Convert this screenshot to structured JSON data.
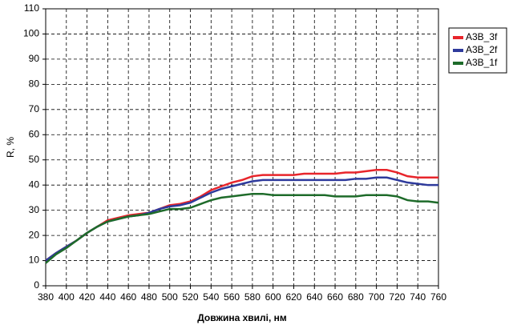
{
  "chart_data": {
    "type": "line",
    "xlabel": "Довжина хвилі, нм",
    "ylabel": "R, %",
    "x": [
      380,
      390,
      400,
      410,
      420,
      430,
      440,
      450,
      460,
      470,
      480,
      490,
      500,
      510,
      520,
      530,
      540,
      550,
      560,
      570,
      580,
      590,
      600,
      610,
      620,
      630,
      640,
      650,
      660,
      670,
      680,
      690,
      700,
      710,
      720,
      730,
      740,
      750,
      760
    ],
    "series": [
      {
        "name": "A3B_3f",
        "color": "#e8252b",
        "values": [
          10,
          13,
          15.5,
          18,
          21,
          23.5,
          26,
          27,
          28,
          28.5,
          29,
          30.5,
          32,
          32.5,
          33.5,
          35.5,
          38,
          39.5,
          41,
          42,
          43.5,
          44,
          44,
          44,
          44,
          44.5,
          44.5,
          44.5,
          44.5,
          45,
          45,
          45.5,
          46,
          46,
          45,
          43.5,
          43,
          43,
          43
        ]
      },
      {
        "name": "A3B_2f",
        "color": "#2e3a9c",
        "values": [
          10,
          13,
          15.5,
          18,
          21,
          23.5,
          25.5,
          26.5,
          27.5,
          28,
          29,
          30.5,
          31.5,
          32,
          33,
          35,
          37,
          38.5,
          39.5,
          40.5,
          41.5,
          42,
          42,
          42,
          42,
          42,
          42,
          42,
          42,
          42,
          42.5,
          42.5,
          43,
          43,
          42,
          41,
          40.5,
          40,
          40
        ]
      },
      {
        "name": "A3B_1f",
        "color": "#1e6b2a",
        "values": [
          9,
          12.5,
          15,
          18,
          21,
          23.5,
          25.5,
          26.5,
          27.5,
          28,
          28.5,
          29.5,
          30.5,
          30.5,
          31,
          32.5,
          34,
          35,
          35.5,
          36,
          36.5,
          36.5,
          36,
          36,
          36,
          36,
          36,
          36,
          35.5,
          35.5,
          35.5,
          36,
          36,
          36,
          35.5,
          34,
          33.5,
          33.5,
          33
        ]
      }
    ],
    "xlim": [
      380,
      760
    ],
    "xticks": [
      380,
      400,
      420,
      440,
      460,
      480,
      500,
      520,
      540,
      560,
      580,
      600,
      620,
      640,
      660,
      680,
      700,
      720,
      740,
      760
    ],
    "ylim": [
      0,
      110
    ],
    "yticks": [
      0,
      10,
      20,
      30,
      40,
      50,
      60,
      70,
      80,
      90,
      100,
      110
    ],
    "grid": true,
    "legend": "right"
  }
}
